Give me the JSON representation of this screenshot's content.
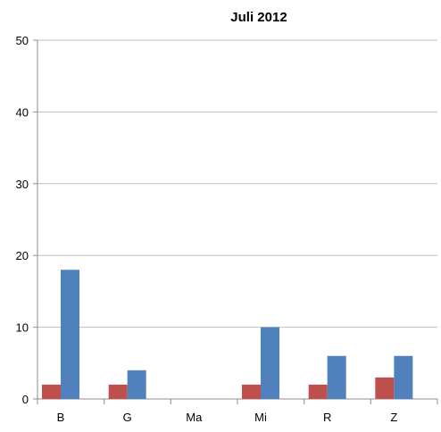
{
  "chart_data": {
    "type": "bar",
    "title": "Juli 2012",
    "xlabel": "",
    "ylabel": "",
    "categories": [
      "B",
      "G",
      "Ma",
      "Mi",
      "R",
      "Z"
    ],
    "series": [
      {
        "values": [
          2,
          2,
          0,
          2,
          2,
          3
        ],
        "color": "#c0504d"
      },
      {
        "values": [
          18,
          4,
          0,
          10,
          6,
          6
        ],
        "color": "#4f81bd"
      }
    ],
    "ylim": [
      0,
      50
    ],
    "yticks": [
      0,
      10,
      20,
      30,
      40,
      50
    ],
    "grid": true,
    "legend": "none"
  }
}
